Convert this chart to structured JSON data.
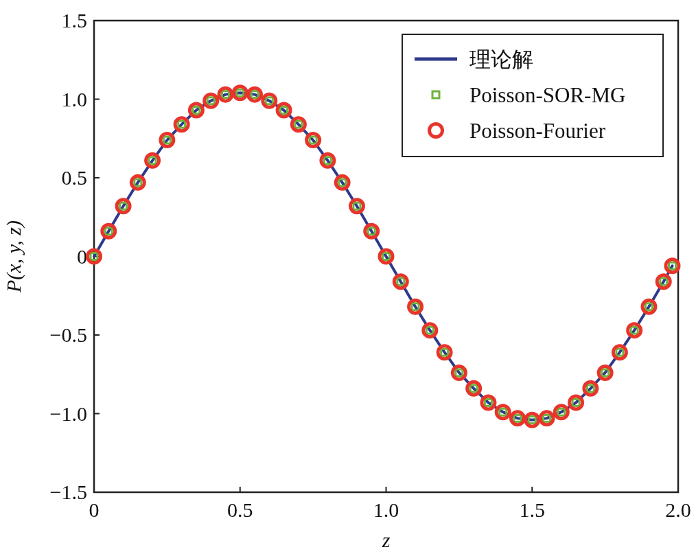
{
  "chart_data": {
    "type": "line",
    "x": [
      0,
      0.05,
      0.1,
      0.15,
      0.2,
      0.25,
      0.3,
      0.35,
      0.4,
      0.45,
      0.5,
      0.55,
      0.6,
      0.65,
      0.7,
      0.75,
      0.8,
      0.85,
      0.9,
      0.95,
      1.0,
      1.05,
      1.1,
      1.15,
      1.2,
      1.25,
      1.3,
      1.35,
      1.4,
      1.45,
      1.5,
      1.55,
      1.6,
      1.65,
      1.7,
      1.75,
      1.8,
      1.85,
      1.9,
      1.95,
      1.98
    ],
    "series": [
      {
        "name": "理论解",
        "marker": "none",
        "line_style": "solid",
        "color": "#2e3a8c",
        "values": [
          0,
          0.16,
          0.32,
          0.47,
          0.61,
          0.74,
          0.84,
          0.93,
          0.99,
          1.03,
          1.04,
          1.03,
          0.99,
          0.93,
          0.84,
          0.74,
          0.61,
          0.47,
          0.32,
          0.16,
          0,
          -0.16,
          -0.32,
          -0.47,
          -0.61,
          -0.74,
          -0.84,
          -0.93,
          -0.99,
          -1.03,
          -1.04,
          -1.03,
          -0.99,
          -0.93,
          -0.84,
          -0.74,
          -0.61,
          -0.47,
          -0.32,
          -0.16,
          -0.06
        ]
      },
      {
        "name": "Poisson-SOR-MG",
        "type": "scatter",
        "marker": "square",
        "color": "#6db33f",
        "values": [
          0,
          0.16,
          0.32,
          0.47,
          0.61,
          0.74,
          0.84,
          0.93,
          0.99,
          1.03,
          1.04,
          1.03,
          0.99,
          0.93,
          0.84,
          0.74,
          0.61,
          0.47,
          0.32,
          0.16,
          0,
          -0.16,
          -0.32,
          -0.47,
          -0.61,
          -0.74,
          -0.84,
          -0.93,
          -0.99,
          -1.03,
          -1.04,
          -1.03,
          -0.99,
          -0.93,
          -0.84,
          -0.74,
          -0.61,
          -0.47,
          -0.32,
          -0.16,
          -0.06
        ]
      },
      {
        "name": "Poisson-Fourier",
        "type": "scatter",
        "marker": "circle",
        "color": "#e8352b",
        "values": [
          0,
          0.16,
          0.32,
          0.47,
          0.61,
          0.74,
          0.84,
          0.93,
          0.99,
          1.03,
          1.04,
          1.03,
          0.99,
          0.93,
          0.84,
          0.74,
          0.61,
          0.47,
          0.32,
          0.16,
          0,
          -0.16,
          -0.32,
          -0.47,
          -0.61,
          -0.74,
          -0.84,
          -0.93,
          -0.99,
          -1.03,
          -1.04,
          -1.03,
          -0.99,
          -0.93,
          -0.84,
          -0.74,
          -0.61,
          -0.47,
          -0.32,
          -0.16,
          -0.06
        ]
      }
    ],
    "xlim": [
      0,
      2.0
    ],
    "ylim": [
      -1.5,
      1.5
    ],
    "xticks": [
      0,
      0.5,
      {
        "value": 1.0,
        "label": "1.0"
      },
      1.5,
      {
        "value": 2.0,
        "label": "2.0"
      }
    ],
    "yticks": [
      {
        "value": -1.5,
        "label": "−1.5"
      },
      {
        "value": -1.0,
        "label": "−1.0"
      },
      {
        "value": -0.5,
        "label": "−0.5"
      },
      0,
      0.5,
      {
        "value": 1.0,
        "label": "1.0"
      },
      1.5
    ],
    "xlabel": "z",
    "ylabel": "P(x, y, z)",
    "legend": "top right"
  }
}
